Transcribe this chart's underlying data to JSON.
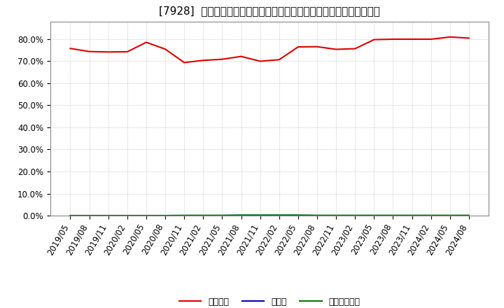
{
  "title": "[7928]  自己資本、のれん、繰延税金資産の総資産に対する比率の推移",
  "background_color": "#ffffff",
  "plot_bg_color": "#ffffff",
  "grid_color": "#aaaaaa",
  "ylim": [
    0.0,
    0.88
  ],
  "yticks": [
    0.0,
    0.1,
    0.2,
    0.3,
    0.4,
    0.5,
    0.6,
    0.7,
    0.8
  ],
  "dates": [
    "2019/05",
    "2019/08",
    "2019/11",
    "2020/02",
    "2020/05",
    "2020/08",
    "2020/11",
    "2021/02",
    "2021/05",
    "2021/08",
    "2021/11",
    "2022/02",
    "2022/05",
    "2022/08",
    "2022/11",
    "2023/02",
    "2023/05",
    "2023/08",
    "2023/11",
    "2024/02",
    "2024/05",
    "2024/08"
  ],
  "jikoshihon": [
    0.758,
    0.744,
    0.742,
    0.743,
    0.786,
    0.755,
    0.694,
    0.704,
    0.709,
    0.722,
    0.7,
    0.707,
    0.765,
    0.766,
    0.754,
    0.757,
    0.798,
    0.8,
    0.8,
    0.8,
    0.81,
    0.805
  ],
  "noren": [
    0.0,
    0.0,
    0.0,
    0.0,
    0.0,
    0.0,
    0.0,
    0.0,
    0.0,
    0.001,
    0.001,
    0.001,
    0.001,
    0.0,
    0.0,
    0.0,
    0.0,
    0.0,
    0.0,
    0.0,
    0.0,
    0.0
  ],
  "kurinobe": [
    0.0,
    0.0,
    0.0,
    0.0,
    0.0,
    0.0,
    0.001,
    0.001,
    0.001,
    0.002,
    0.002,
    0.002,
    0.002,
    0.001,
    0.001,
    0.001,
    0.001,
    0.001,
    0.001,
    0.001,
    0.001,
    0.001
  ],
  "jikoshihon_color": "#dd0000",
  "noren_color": "#0000cc",
  "kurinobe_color": "#007700",
  "legend_labels": [
    "自己資本",
    "のれん",
    "繰延税金資産"
  ],
  "xlabel_rotation": 60,
  "title_fontsize": 11,
  "tick_fontsize": 8.5,
  "legend_fontsize": 9
}
